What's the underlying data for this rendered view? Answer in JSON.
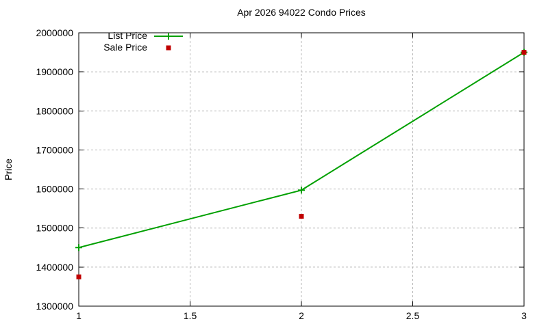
{
  "chart_data": {
    "type": "line",
    "title": "Apr 2026 94022 Condo Prices",
    "xlabel": "",
    "ylabel": "Price",
    "xlim": [
      1,
      3
    ],
    "ylim": [
      1300000,
      2000000
    ],
    "xticks": [
      1,
      1.5,
      2,
      2.5,
      3
    ],
    "yticks": [
      1300000,
      1400000,
      1500000,
      1600000,
      1700000,
      1800000,
      1900000,
      2000000
    ],
    "grid": true,
    "grid_style": "dashed-gray",
    "legend_position": "top-left-inside",
    "series": [
      {
        "name": "List Price",
        "type": "line",
        "marker": "plus",
        "color": "#00a000",
        "x": [
          1,
          2,
          3
        ],
        "y": [
          1450000,
          1597000,
          1950000
        ]
      },
      {
        "name": "Sale Price",
        "type": "scatter",
        "marker": "square",
        "color": "#c00000",
        "x": [
          1,
          2,
          3
        ],
        "y": [
          1375000,
          1530000,
          1950000
        ]
      }
    ]
  }
}
